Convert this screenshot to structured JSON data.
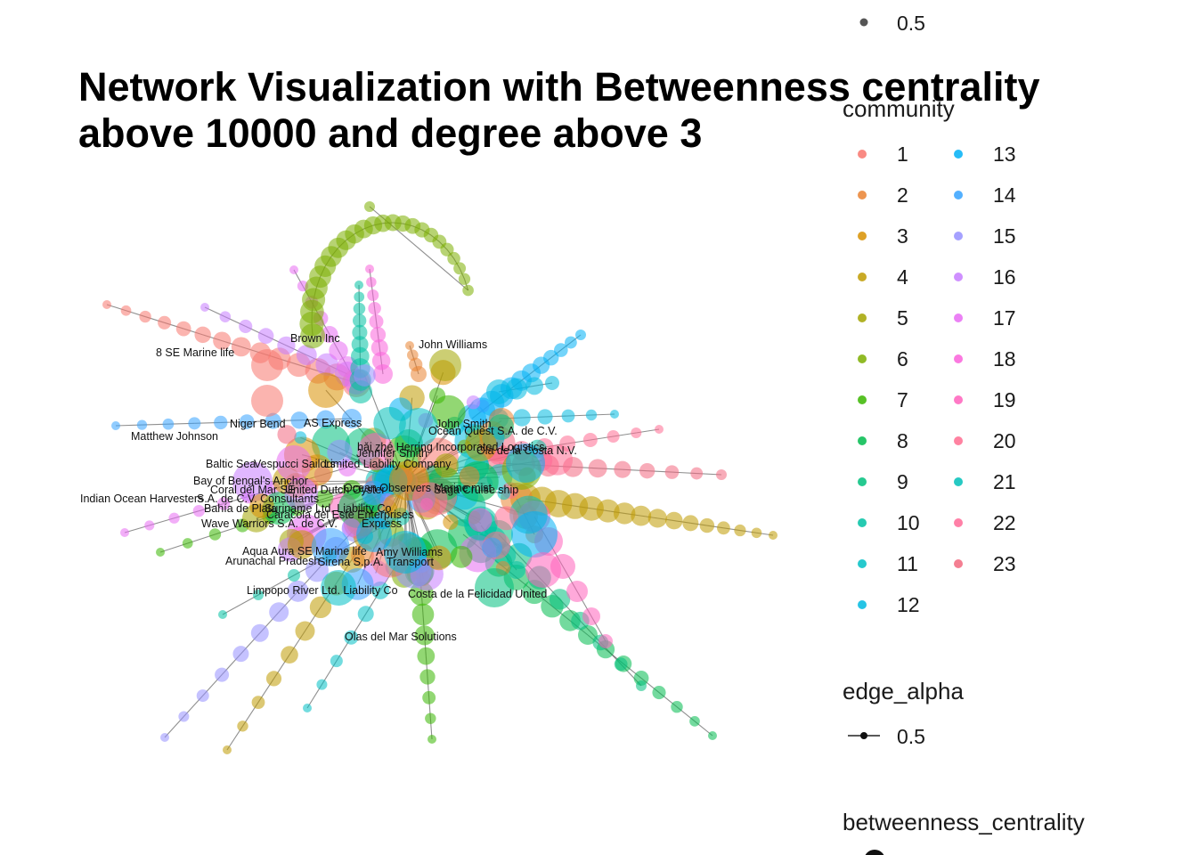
{
  "title_line1": "Network Visualization with Betweenness centrality",
  "title_line2": "above 10000 and degree above 3",
  "legend": {
    "alpha_value": "0.5",
    "community_title": "community",
    "communities": [
      {
        "label": "1",
        "color": "#F8766D"
      },
      {
        "label": "2",
        "color": "#EA8331"
      },
      {
        "label": "3",
        "color": "#D89000"
      },
      {
        "label": "4",
        "color": "#C09B00"
      },
      {
        "label": "5",
        "color": "#A3A500"
      },
      {
        "label": "6",
        "color": "#7CAE00"
      },
      {
        "label": "7",
        "color": "#39B600"
      },
      {
        "label": "8",
        "color": "#00BB4E"
      },
      {
        "label": "9",
        "color": "#00BF7D"
      },
      {
        "label": "10",
        "color": "#00C1A3"
      },
      {
        "label": "11",
        "color": "#00BFC4"
      },
      {
        "label": "12",
        "color": "#00BAE0"
      },
      {
        "label": "13",
        "color": "#00B0F6"
      },
      {
        "label": "14",
        "color": "#35A2FF"
      },
      {
        "label": "15",
        "color": "#9590FF"
      },
      {
        "label": "16",
        "color": "#C77CFF"
      },
      {
        "label": "17",
        "color": "#E76BF3"
      },
      {
        "label": "18",
        "color": "#FA62DB"
      },
      {
        "label": "19",
        "color": "#FF62BC"
      },
      {
        "label": "20",
        "color": "#FF6C91"
      },
      {
        "label": "21",
        "color": "#00C0B8"
      },
      {
        "label": "22",
        "color": "#FF6A98"
      },
      {
        "label": "23",
        "color": "#F2687F"
      }
    ],
    "edge_alpha_title": "edge_alpha",
    "edge_alpha_value": "0.5",
    "betweenness_title": "betweenness_centrality"
  },
  "node_labels": [
    "Brown Inc",
    "John Williams",
    "8 SE Marine life",
    "Niger Bend",
    "AS Express",
    "John Smith",
    "Ocean Quest S.A. de C.V.",
    "Matthew Johnson",
    "hǎi zhé Herring Incorporated Logistics",
    "Ola de la Costa N.V.",
    "Jennifer Smith",
    "Baltic Sea",
    "Vespucci Sailors",
    "Limited Liability Company",
    "Bay of Bengal's Anchor",
    "Ocean Observers Marine mist",
    "Coral del Mar SE",
    "United Dutch Oyster",
    "Saga Cruise ship",
    "Indian Ocean Harvesters",
    "S.A. de C.V. Consultants",
    "Bahía de Plata",
    "Suriname Ltd. Liability Co",
    "Caracola del Este Enterprises",
    "Wave Warriors S.A. de C.V.",
    "Express",
    "Aqua Aura SE Marine life",
    "Amy Williams",
    "Arunachal Pradesh",
    "Sirena S.p.A. Transport",
    "Limpopo River  Ltd. Liability Co",
    "Costa de la Felicidad United",
    "Olas del Mar Solutions"
  ]
}
